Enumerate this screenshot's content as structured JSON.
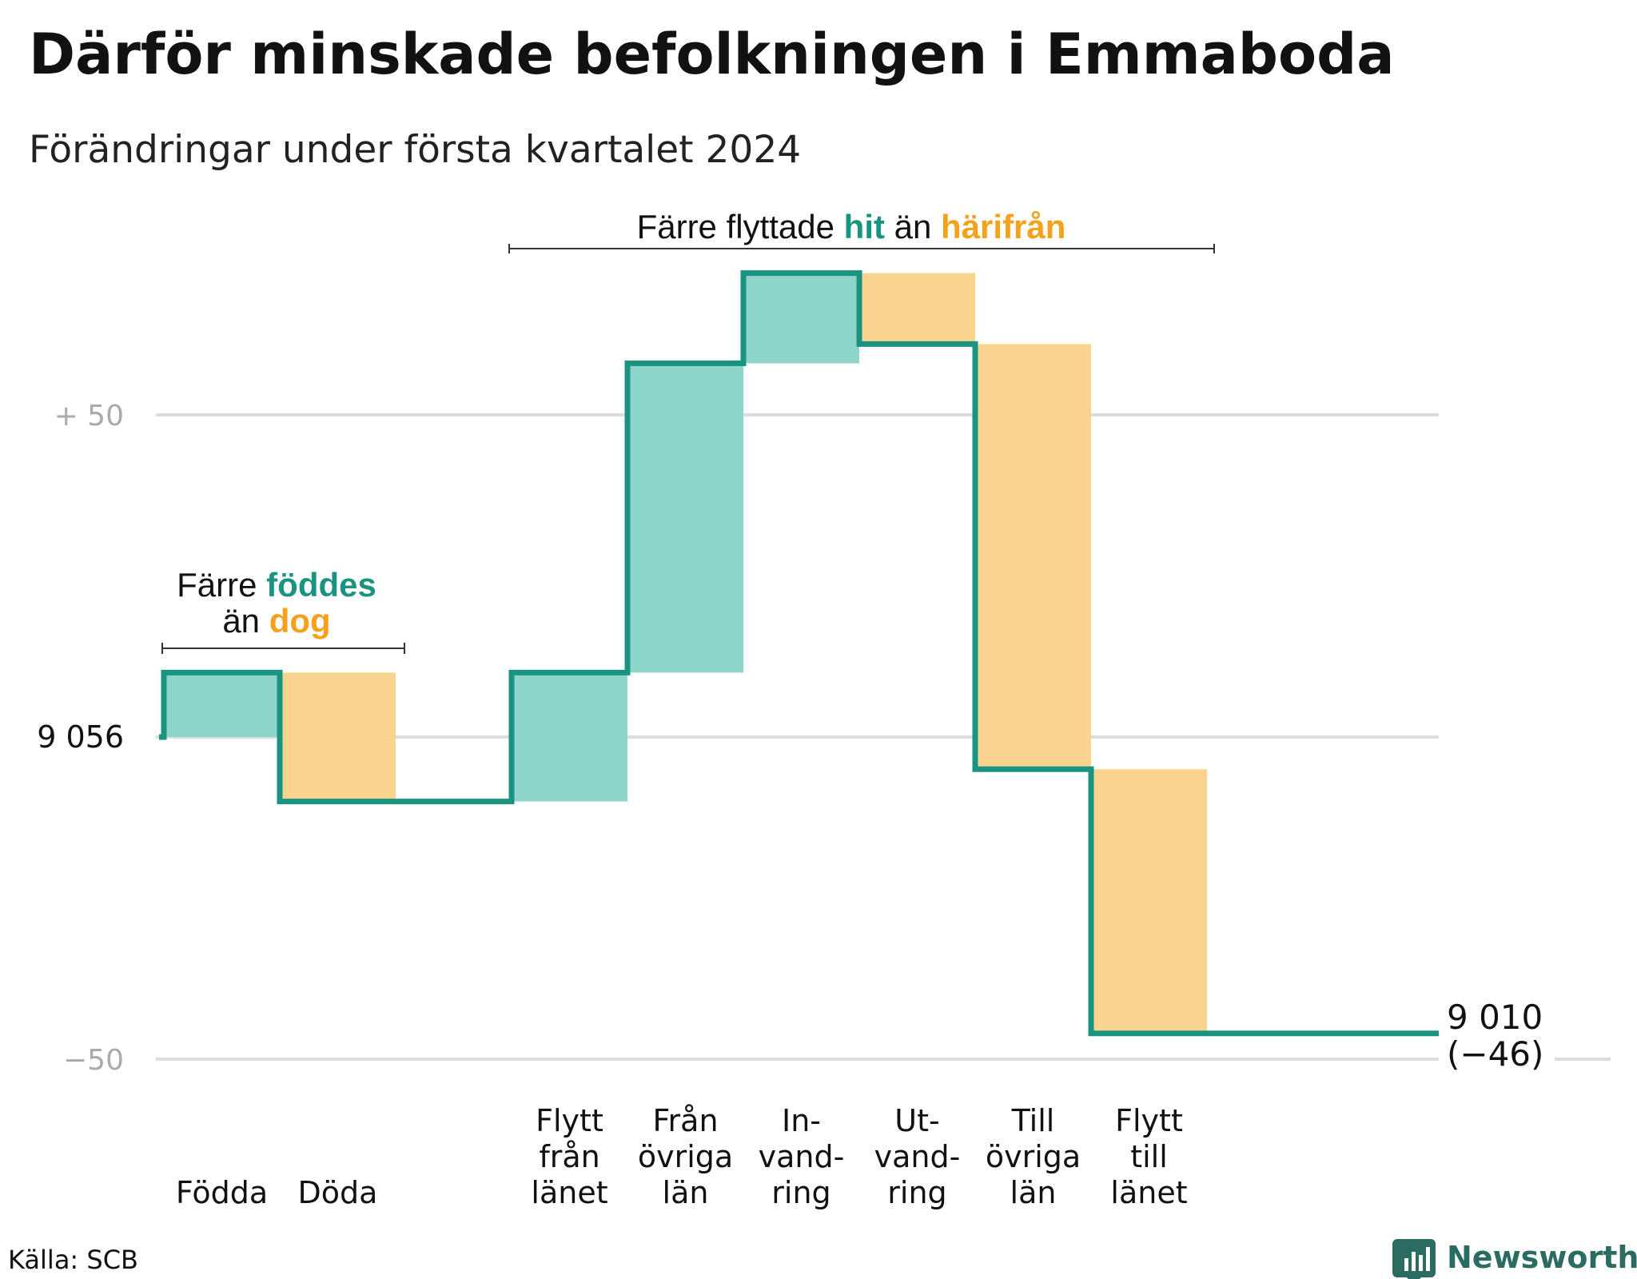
{
  "title": "Därför minskade befolkningen i Emmaboda",
  "subtitle": "Förändringar under första kvartalet 2024",
  "source": "Källa: SCB",
  "brand": "Newsworthy",
  "colors": {
    "increase_fill": "#8dd4cb",
    "decrease_fill": "#fad48f",
    "line": "#1a9481",
    "teal_text": "#1a9481",
    "orange_text": "#f5a11c",
    "grid": "#dddddd"
  },
  "annotations": {
    "births": {
      "prefix": "Färre",
      "teal_word": "föddes",
      "mid": "än",
      "orange_word": "dog"
    },
    "moves": {
      "prefix": "Färre flyttade",
      "teal_word": "hit",
      "mid": "än",
      "orange_word": "härifrån"
    }
  },
  "y_axis": {
    "ticks": [
      {
        "label": "+  50",
        "value": 50
      },
      {
        "label": "9  056",
        "value": 0,
        "dark": true
      },
      {
        "label": "−50",
        "value": -50
      }
    ]
  },
  "chart_data": {
    "type": "waterfall",
    "title": "Därför minskade befolkningen i Emmaboda",
    "subtitle": "Förändringar under första kvartalet 2024",
    "start_value": 9056,
    "end_value": 9010,
    "net_change": -46,
    "end_label_value": "9 010",
    "end_label_change": "(−46)",
    "ylim_relative": [
      -50,
      72
    ],
    "grid": true,
    "categories": [
      {
        "label": [
          "Födda"
        ],
        "change": 10
      },
      {
        "label": [
          "Döda"
        ],
        "change": -20
      },
      {
        "label": [],
        "change": 0
      },
      {
        "label": [
          "Flytt",
          "från",
          "länet"
        ],
        "change": 20
      },
      {
        "label": [
          "Från",
          "övriga",
          "län"
        ],
        "change": 48
      },
      {
        "label": [
          "In-",
          "vand-",
          "ring"
        ],
        "change": 14
      },
      {
        "label": [
          "Ut-",
          "vand-",
          "ring"
        ],
        "change": -11
      },
      {
        "label": [
          "Till",
          "övriga",
          "län"
        ],
        "change": -66
      },
      {
        "label": [
          "Flytt",
          "till",
          "länet"
        ],
        "change": -41
      }
    ]
  }
}
